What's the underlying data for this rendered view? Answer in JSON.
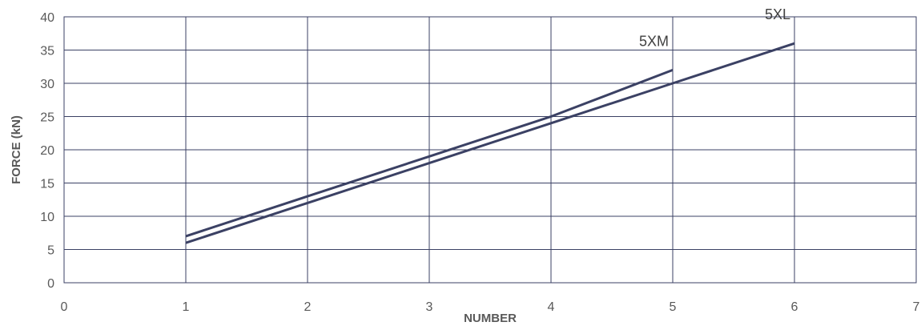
{
  "chart_data": {
    "type": "line",
    "xlabel": "NUMBER",
    "ylabel": "FORCE (kN)",
    "xlim": [
      0,
      7
    ],
    "ylim": [
      0,
      40
    ],
    "xticks": [
      0,
      1,
      2,
      3,
      4,
      5,
      6,
      7
    ],
    "yticks": [
      0,
      5,
      10,
      15,
      20,
      25,
      30,
      35,
      40
    ],
    "grid": true,
    "line_color": "#3b4164",
    "series": [
      {
        "name": "5XM",
        "x": [
          1,
          2,
          3,
          4,
          5
        ],
        "y": [
          7,
          13,
          19,
          25,
          32
        ]
      },
      {
        "name": "5XL",
        "x": [
          1,
          2,
          3,
          4,
          5,
          6
        ],
        "y": [
          6,
          12,
          18,
          24,
          30,
          36
        ]
      }
    ]
  }
}
